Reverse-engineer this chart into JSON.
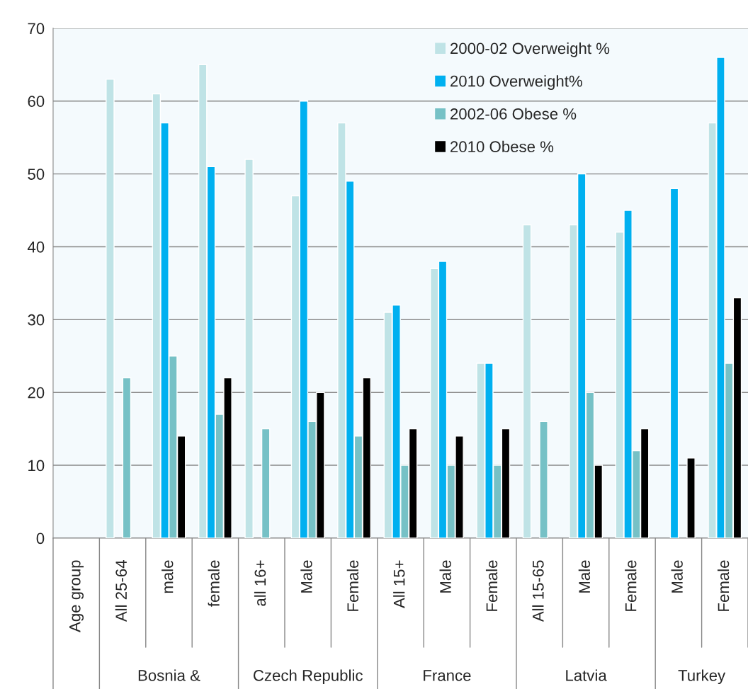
{
  "chart_data": {
    "type": "bar",
    "categories": [
      "Age group",
      "All 25-64",
      "male",
      "female",
      "all 16+",
      "Male",
      "Female",
      "All 15+",
      "Male",
      "Female",
      "All 15-65",
      "Male",
      "Female",
      "Male",
      "Female"
    ],
    "series": [
      {
        "name": "2000-02 Overweight %",
        "color": "#bfe3e6",
        "values": [
          null,
          63,
          61,
          65,
          52,
          47,
          57,
          31,
          37,
          24,
          43,
          43,
          42,
          null,
          57
        ]
      },
      {
        "name": "2010 Overweight%",
        "color": "#00b0f0",
        "values": [
          null,
          null,
          57,
          51,
          null,
          60,
          49,
          32,
          38,
          24,
          null,
          50,
          45,
          48,
          66
        ]
      },
      {
        "name": "2002-06 Obese %",
        "color": "#76c1c6",
        "values": [
          null,
          22,
          25,
          17,
          15,
          16,
          14,
          10,
          10,
          10,
          16,
          20,
          12,
          null,
          24
        ]
      },
      {
        "name": "2010 Obese %",
        "color": "#000000",
        "values": [
          null,
          null,
          14,
          22,
          null,
          20,
          22,
          15,
          14,
          15,
          null,
          10,
          15,
          11,
          33
        ]
      }
    ],
    "annotations": [
      "Bosnia &",
      "Czech Republic",
      "France",
      "Latvia",
      "Turkey"
    ],
    "ylim": [
      0,
      70
    ],
    "yticks": [
      0,
      10,
      20,
      30,
      40,
      50,
      60,
      70
    ],
    "grid": "y",
    "legend": "top right"
  }
}
